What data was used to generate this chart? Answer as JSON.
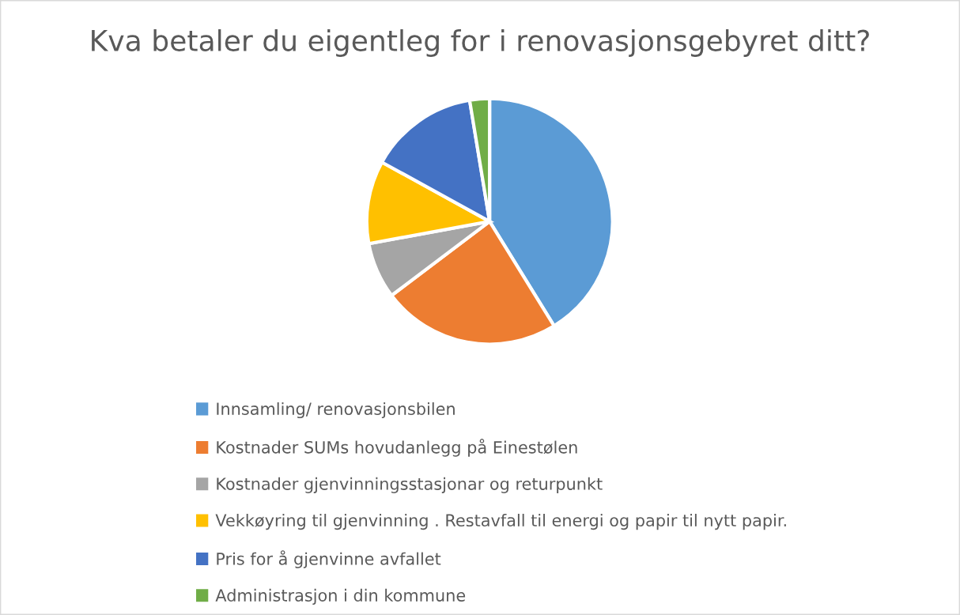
{
  "chart_data": {
    "type": "pie",
    "title": "Kva betaler du eigentleg for i renovasjonsgebyret ditt?",
    "categories": [
      "Innsamling/ renovasjonsbilen",
      "Kostnader SUMs hovudanlegg på Einestølen",
      "Kostnader gjenvinningsstasjonar og returpunkt",
      "Vekkøyring til gjenvinning . Restavfall til energi og papir til nytt papir.",
      "Pris for å gjenvinne avfallet",
      "Administrasjon i din kommune"
    ],
    "values": [
      41.2,
      23.5,
      7.4,
      10.9,
      14.4,
      2.6
    ],
    "colors": [
      "#5b9bd5",
      "#ed7d31",
      "#a5a5a5",
      "#ffc000",
      "#4472c4",
      "#70ad47"
    ],
    "legend": "bottom"
  }
}
